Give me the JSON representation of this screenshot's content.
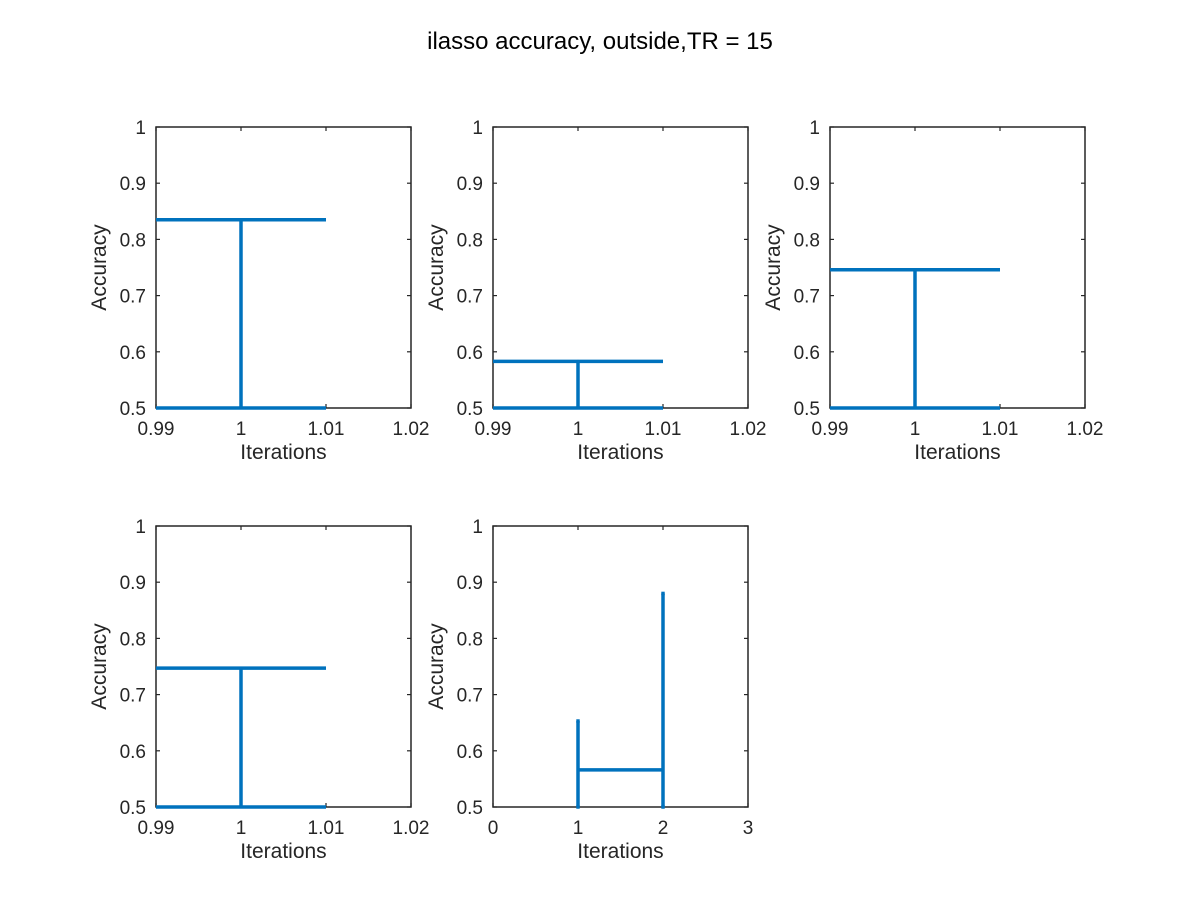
{
  "figure_title": "ilasso accuracy, outside,TR = 15",
  "colors": {
    "line": "#0072BD",
    "axes": "#262626",
    "background": "#ffffff"
  },
  "chart_data": [
    {
      "type": "line",
      "title": "",
      "xlabel": "Iterations",
      "ylabel": "Accuracy",
      "xlim": [
        0.99,
        1.02
      ],
      "ylim": [
        0.5,
        1
      ],
      "xticks": [
        0.99,
        1,
        1.01,
        1.02
      ],
      "xtick_labels": [
        "0.99",
        "1",
        "1.01",
        "1.02"
      ],
      "yticks": [
        0.5,
        0.6,
        0.7,
        0.8,
        0.9,
        1
      ],
      "ytick_labels": [
        "0.5",
        "0.6",
        "0.7",
        "0.8",
        "0.9",
        "1"
      ],
      "grid": false,
      "series": [
        {
          "name": "accuracy",
          "x": [
            1
          ],
          "y": [
            0.835
          ],
          "error_low": [
            0.5
          ],
          "error_high": [
            0.835
          ],
          "cap_width": 0.01
        }
      ]
    },
    {
      "type": "line",
      "title": "",
      "xlabel": "Iterations",
      "ylabel": "Accuracy",
      "xlim": [
        0.99,
        1.02
      ],
      "ylim": [
        0.5,
        1
      ],
      "xticks": [
        0.99,
        1,
        1.01,
        1.02
      ],
      "xtick_labels": [
        "0.99",
        "1",
        "1.01",
        "1.02"
      ],
      "yticks": [
        0.5,
        0.6,
        0.7,
        0.8,
        0.9,
        1
      ],
      "ytick_labels": [
        "0.5",
        "0.6",
        "0.7",
        "0.8",
        "0.9",
        "1"
      ],
      "grid": false,
      "series": [
        {
          "name": "accuracy",
          "x": [
            1
          ],
          "y": [
            0.583
          ],
          "error_low": [
            0.5
          ],
          "error_high": [
            0.583
          ],
          "cap_width": 0.01
        }
      ]
    },
    {
      "type": "line",
      "title": "",
      "xlabel": "Iterations",
      "ylabel": "Accuracy",
      "xlim": [
        0.99,
        1.02
      ],
      "ylim": [
        0.5,
        1
      ],
      "xticks": [
        0.99,
        1,
        1.01,
        1.02
      ],
      "xtick_labels": [
        "0.99",
        "1",
        "1.01",
        "1.02"
      ],
      "yticks": [
        0.5,
        0.6,
        0.7,
        0.8,
        0.9,
        1
      ],
      "ytick_labels": [
        "0.5",
        "0.6",
        "0.7",
        "0.8",
        "0.9",
        "1"
      ],
      "grid": false,
      "series": [
        {
          "name": "accuracy",
          "x": [
            1
          ],
          "y": [
            0.746
          ],
          "error_low": [
            0.5
          ],
          "error_high": [
            0.746
          ],
          "cap_width": 0.01
        }
      ]
    },
    {
      "type": "line",
      "title": "",
      "xlabel": "Iterations",
      "ylabel": "Accuracy",
      "xlim": [
        0.99,
        1.02
      ],
      "ylim": [
        0.5,
        1
      ],
      "xticks": [
        0.99,
        1,
        1.01,
        1.02
      ],
      "xtick_labels": [
        "0.99",
        "1",
        "1.01",
        "1.02"
      ],
      "yticks": [
        0.5,
        0.6,
        0.7,
        0.8,
        0.9,
        1
      ],
      "ytick_labels": [
        "0.5",
        "0.6",
        "0.7",
        "0.8",
        "0.9",
        "1"
      ],
      "grid": false,
      "series": [
        {
          "name": "accuracy",
          "x": [
            1
          ],
          "y": [
            0.747
          ],
          "error_low": [
            0.5
          ],
          "error_high": [
            0.747
          ],
          "cap_width": 0.01
        }
      ]
    },
    {
      "type": "line",
      "title": "",
      "xlabel": "Iterations",
      "ylabel": "Accuracy",
      "xlim": [
        0,
        3
      ],
      "ylim": [
        0.5,
        1
      ],
      "xticks": [
        0,
        1,
        2,
        3
      ],
      "xtick_labels": [
        "0",
        "1",
        "2",
        "3"
      ],
      "yticks": [
        0.5,
        0.6,
        0.7,
        0.8,
        0.9,
        1
      ],
      "ytick_labels": [
        "0.5",
        "0.6",
        "0.7",
        "0.8",
        "0.9",
        "1"
      ],
      "grid": false,
      "series": [
        {
          "name": "accuracy",
          "x": [
            1,
            2
          ],
          "y": [
            0.566,
            0.566
          ],
          "error_low": [
            0.5,
            0.5
          ],
          "error_high": [
            0.653,
            0.88
          ],
          "cap_width": 0.02
        }
      ]
    }
  ]
}
